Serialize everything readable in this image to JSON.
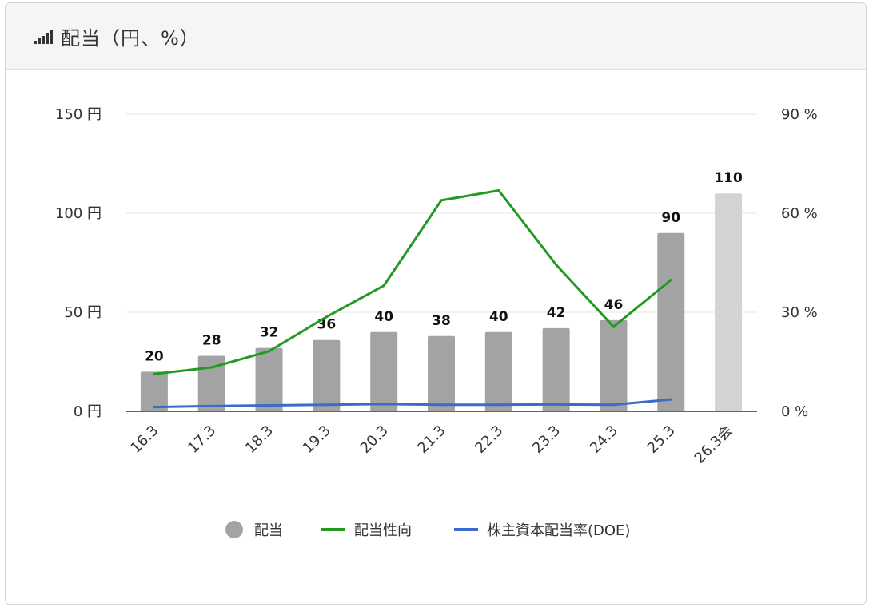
{
  "header": {
    "title": "配当（円、%）",
    "icon": "signal-bars-icon"
  },
  "colors": {
    "bar": "#a3a3a3",
    "bar_forecast": "#d3d3d3",
    "payout": "#229a22",
    "doe": "#3a6cc8",
    "grid": "#e6e6e6",
    "axis": "#333333"
  },
  "chart_data": {
    "type": "bar",
    "title": "配当（円、%）",
    "categories": [
      "16.3",
      "17.3",
      "18.3",
      "19.3",
      "20.3",
      "21.3",
      "22.3",
      "23.3",
      "24.3",
      "25.3",
      "26.3会"
    ],
    "y_left": {
      "unit": "円",
      "ylim": [
        0,
        150
      ],
      "ticks": [
        0,
        50,
        100,
        150
      ],
      "tick_labels": [
        "0 円",
        "50 円",
        "100 円",
        "150 円"
      ]
    },
    "y_right": {
      "unit": "%",
      "ylim": [
        0,
        90
      ],
      "ticks": [
        0,
        30,
        60,
        90
      ],
      "tick_labels": [
        "0 %",
        "30 %",
        "60 %",
        "90 %"
      ]
    },
    "grid": true,
    "legend_position": "bottom",
    "series": [
      {
        "name": "配当",
        "type": "bar",
        "axis": "left",
        "values": [
          20,
          28,
          32,
          36,
          40,
          38,
          40,
          42,
          46,
          90,
          110
        ],
        "forecast_index": 10
      },
      {
        "name": "配当性向",
        "type": "line",
        "axis": "right",
        "values": [
          11.3,
          13.3,
          18.2,
          28.6,
          38.1,
          63.9,
          66.9,
          44.4,
          25.6,
          39.8,
          null
        ]
      },
      {
        "name": "株主資本配当率(DOE)",
        "type": "line",
        "axis": "right",
        "values": [
          1.3,
          1.6,
          1.8,
          2.0,
          2.2,
          2.0,
          2.0,
          2.1,
          2.0,
          3.6,
          null
        ]
      }
    ]
  }
}
